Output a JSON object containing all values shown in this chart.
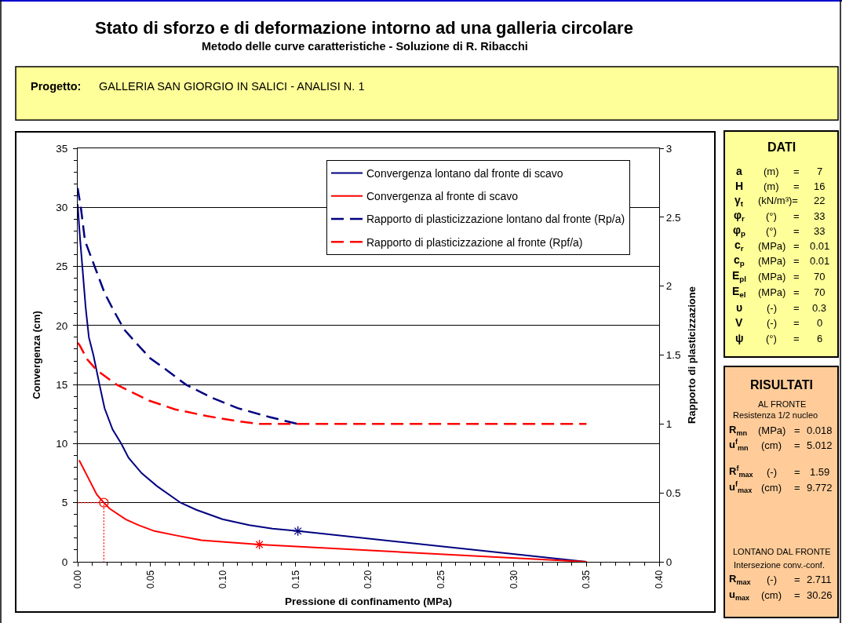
{
  "chart_data": {
    "type": "line",
    "title": "Stato di sforzo e di deformazione intorno ad una galleria circolare",
    "subtitle": "Metodo delle curve caratteristiche - Soluzione di R. Ribacchi",
    "xlabel": "Pressione di confinamento (MPa)",
    "ylabel": "Convergenza (cm)",
    "y2label": "Rapporto di plasticizzazione",
    "xlim": [
      0,
      0.4
    ],
    "ylim": [
      0,
      35
    ],
    "y2lim": [
      0,
      3
    ],
    "xticks": [
      {
        "value": 0,
        "label": "0.00"
      },
      {
        "value": 0.01,
        "label": null
      },
      {
        "value": 0.02,
        "label": null
      },
      {
        "value": 0.03,
        "label": null
      },
      {
        "value": 0.04,
        "label": null
      },
      0.05,
      {
        "value": 0.06,
        "label": null
      },
      {
        "value": 0.07,
        "label": null
      },
      {
        "value": 0.08,
        "label": null
      },
      {
        "value": 0.09,
        "label": null
      },
      {
        "value": 0.1,
        "label": "0.10"
      },
      {
        "value": 0.11,
        "label": null
      },
      {
        "value": 0.12,
        "label": null
      },
      {
        "value": 0.13,
        "label": null
      },
      {
        "value": 0.14,
        "label": null
      },
      0.15,
      {
        "value": 0.16,
        "label": null
      },
      {
        "value": 0.17,
        "label": null
      },
      {
        "value": 0.18,
        "label": null
      },
      {
        "value": 0.19,
        "label": null
      },
      {
        "value": 0.2,
        "label": "0.20"
      },
      {
        "value": 0.21,
        "label": null
      },
      {
        "value": 0.22,
        "label": null
      },
      {
        "value": 0.23,
        "label": null
      },
      {
        "value": 0.24,
        "label": null
      },
      0.25,
      {
        "value": 0.26,
        "label": null
      },
      {
        "value": 0.27,
        "label": null
      },
      {
        "value": 0.28,
        "label": null
      },
      {
        "value": 0.29,
        "label": null
      },
      {
        "value": 0.3,
        "label": "0.30"
      },
      {
        "value": 0.31,
        "label": null
      },
      {
        "value": 0.32,
        "label": null
      },
      {
        "value": 0.33,
        "label": null
      },
      {
        "value": 0.34,
        "label": null
      },
      0.35,
      {
        "value": 0.36,
        "label": null
      },
      {
        "value": 0.37,
        "label": null
      },
      {
        "value": 0.38,
        "label": null
      },
      {
        "value": 0.39,
        "label": null
      },
      {
        "value": 0.4,
        "label": "0.40"
      }
    ],
    "yticks": [
      0,
      {
        "value": 1,
        "label": null
      },
      {
        "value": 2,
        "label": null
      },
      {
        "value": 3,
        "label": null
      },
      {
        "value": 4,
        "label": null
      },
      5,
      {
        "value": 6,
        "label": null
      },
      {
        "value": 7,
        "label": null
      },
      {
        "value": 8,
        "label": null
      },
      {
        "value": 9,
        "label": null
      },
      10,
      {
        "value": 11,
        "label": null
      },
      {
        "value": 12,
        "label": null
      },
      {
        "value": 13,
        "label": null
      },
      {
        "value": 14,
        "label": null
      },
      15,
      {
        "value": 16,
        "label": null
      },
      {
        "value": 17,
        "label": null
      },
      {
        "value": 18,
        "label": null
      },
      {
        "value": 19,
        "label": null
      },
      20,
      {
        "value": 21,
        "label": null
      },
      {
        "value": 22,
        "label": null
      },
      {
        "value": 23,
        "label": null
      },
      {
        "value": 24,
        "label": null
      },
      25,
      {
        "value": 26,
        "label": null
      },
      {
        "value": 27,
        "label": null
      },
      {
        "value": 28,
        "label": null
      },
      {
        "value": 29,
        "label": null
      },
      30,
      {
        "value": 31,
        "label": null
      },
      {
        "value": 32,
        "label": null
      },
      {
        "value": 33,
        "label": null
      },
      {
        "value": 34,
        "label": null
      },
      35
    ],
    "y2ticks": [
      0,
      0.5,
      1,
      1.5,
      2,
      2.5,
      3
    ],
    "grid": "y",
    "legend": "top right",
    "series": [
      {
        "name": "Convergenza lontano dal fronte di scavo",
        "color": "#000080",
        "x": [
          0,
          0.0016,
          0.0032,
          0.0055,
          0.0077,
          0.0108,
          0.015,
          0.0185,
          0.024,
          0.03,
          0.035,
          0.044,
          0.0546,
          0.0708,
          0.0816,
          0.0996,
          0.118,
          0.134,
          0.1515,
          0.35
        ],
        "values": [
          30.26,
          27.4,
          25.0,
          21.5,
          19.0,
          17.5,
          15.0,
          13.0,
          11.2,
          10.0,
          8.8,
          7.5,
          6.4,
          5.0,
          4.4,
          3.6,
          3.1,
          2.8,
          2.6,
          0
        ]
      },
      {
        "name": "Convergenza al fronte di scavo",
        "color": "#ff0000",
        "x": [
          0.001,
          0.0077,
          0.0131,
          0.018,
          0.022,
          0.033,
          0.042,
          0.0528,
          0.069,
          0.085,
          0.103,
          0.125,
          0.35
        ],
        "values": [
          8.6,
          7.0,
          5.7,
          5.0,
          4.5,
          3.6,
          3.1,
          2.6,
          2.2,
          1.83,
          1.66,
          1.46,
          0
        ]
      },
      {
        "name": "Rapporto di plasticizzazione lontano dal fronte (Rp/a)",
        "color": "#000080",
        "axis": "y2",
        "line_style": "dashed",
        "x": [
          0,
          0.0023,
          0.005,
          0.0114,
          0.0185,
          0.0249,
          0.032,
          0.04,
          0.05,
          0.06,
          0.0744,
          0.0924,
          0.11,
          0.132,
          0.1515
        ],
        "values": [
          2.711,
          2.56,
          2.33,
          2.15,
          1.95,
          1.82,
          1.685,
          1.59,
          1.476,
          1.4,
          1.286,
          1.19,
          1.115,
          1.05,
          1.0
        ]
      },
      {
        "name": "Rapporto di plasticizzazione al fronte (Rpf/a)",
        "color": "#ff0000",
        "axis": "y2",
        "line_style": "dashed",
        "x": [
          0,
          0.0014,
          0.0065,
          0.0131,
          0.0267,
          0.049,
          0.067,
          0.089,
          0.11,
          0.125,
          0.35
        ],
        "values": [
          1.59,
          1.57,
          1.47,
          1.39,
          1.286,
          1.17,
          1.106,
          1.057,
          1.02,
          1.0,
          1.0
        ]
      },
      {
        "color": "#ff0000",
        "line_style": "dotted",
        "x": [
          0,
          0.018,
          0.018
        ],
        "values": [
          5.0,
          5.0,
          0
        ]
      },
      {
        "color": "#ff0000",
        "type": "scatter",
        "marker": "circle",
        "x": [
          0.018
        ],
        "values": [
          5.0
        ]
      },
      {
        "color": "#000080",
        "type": "scatter",
        "marker": "cross",
        "x": [
          0.1515
        ],
        "values": [
          2.6
        ]
      },
      {
        "color": "#ff0000",
        "type": "scatter",
        "marker": "cross",
        "x": [
          0.125
        ],
        "values": [
          1.46
        ]
      }
    ],
    "annotations": [
      "Progetto:",
      "GALLERIA SAN GIORGIO IN SALICI - ANALISI N. 1",
      "DATI",
      "a",
      "(m)",
      "=",
      "7",
      "H",
      "(m)",
      "=",
      "16",
      "γ$_{t}$",
      "(kN/m³)=",
      "22",
      "φ$_{r}$",
      "(°)",
      "=",
      "33",
      "φ$_{p}$",
      "(°)",
      "=",
      "33",
      "c$_{r}$",
      "(MPa)",
      "=",
      "0.01",
      "c$_{p}$",
      "(MPa)",
      "=",
      "0.01",
      "E$_{pl}$",
      "(MPa)",
      "=",
      "70",
      "E$_{el}$",
      "(MPa)",
      "=",
      "70",
      "υ",
      "(-)",
      "=",
      "0.3",
      "V",
      "(-)",
      "=",
      "0",
      "ψ",
      "(°)",
      "=",
      "6",
      "RISULTATI",
      "AL FRONTE",
      "Resistenza 1/2 nucleo",
      "R$_{mn}$",
      "(MPa)",
      "=",
      "0.018",
      "u$^{f}$$_{mn}$",
      "(cm)",
      "=",
      "5.012",
      "R$^{f}$$_{max}$",
      "(-)",
      "=",
      "1.59",
      "u$^{f}$$_{max}$",
      "(cm)",
      "=",
      "9.772",
      "LONTANO DAL FRONTE",
      "Intersezione conv.-conf.",
      "R$_{max}$",
      "(-)",
      "=",
      "2.711",
      "u$_{max}$",
      "(cm)",
      "=",
      "30.26"
    ]
  }
}
